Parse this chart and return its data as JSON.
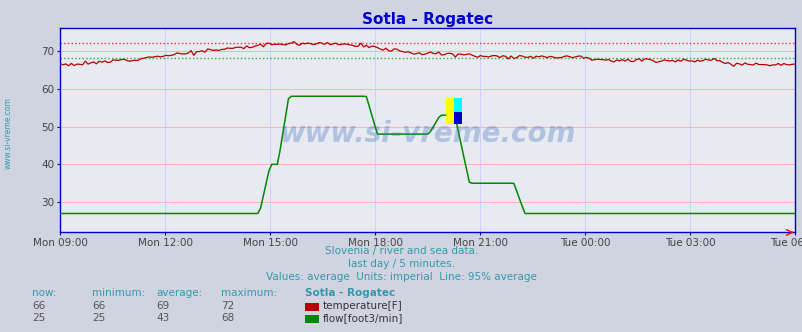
{
  "title": "Sotla - Rogatec",
  "bg_color": "#d0d4e0",
  "plot_bg_color": "#e8eaf2",
  "grid_color_h": "#ffaaaa",
  "grid_color_v": "#ccccff",
  "axis_color": "#0000cc",
  "title_color": "#0000cc",
  "text_color": "#3399aa",
  "watermark_color": "#3366bb",
  "subtitle1": "Slovenia / river and sea data.",
  "subtitle2": "last day / 5 minutes.",
  "subtitle3": "Values: average  Units: imperial  Line: 95% average",
  "ymin": 22,
  "ymax": 76,
  "yticks": [
    30,
    40,
    50,
    60,
    70
  ],
  "xtick_labels": [
    "Mon 09:00",
    "Mon 12:00",
    "Mon 15:00",
    "Mon 18:00",
    "Mon 21:00",
    "Tue 00:00",
    "Tue 03:00",
    "Tue 06:00"
  ],
  "temp_95pct": 72,
  "flow_95pct": 68,
  "temp_color": "#bb0000",
  "flow_color": "#008800",
  "temp_dotted_color": "#dd3333",
  "flow_dotted_color": "#33aa33",
  "station_label": "Sotla - Rogatec",
  "temp_row": [
    "66",
    "66",
    "69",
    "72",
    "temperature[F]"
  ],
  "flow_row": [
    "25",
    "25",
    "43",
    "68",
    "flow[foot3/min]"
  ],
  "watermark": "www.si-vreme.com",
  "left_label": "www.si-vreme.com",
  "table_headers": [
    "now:",
    "minimum:",
    "average:",
    "maximum:",
    "Sotla - Rogatec"
  ]
}
